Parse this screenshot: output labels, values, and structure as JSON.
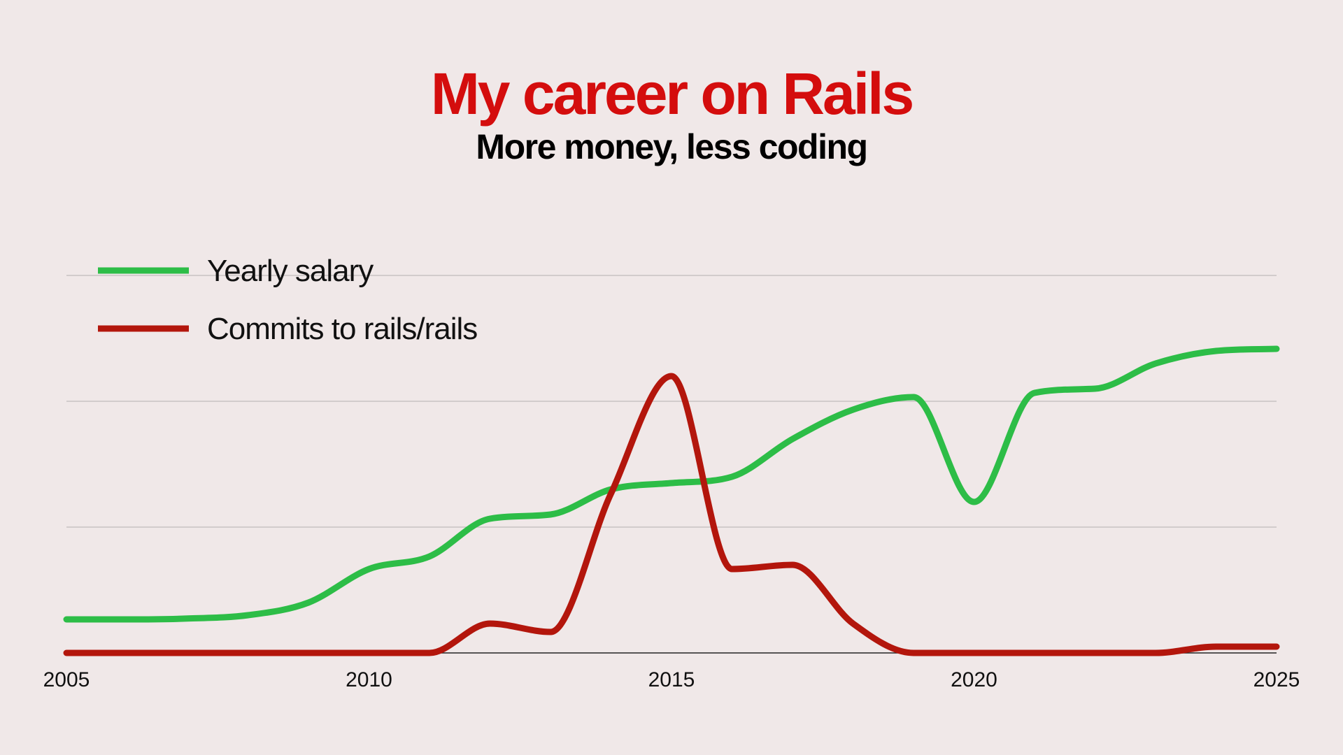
{
  "header": {
    "title": "My career on Rails",
    "subtitle": "More money, less coding"
  },
  "colors": {
    "background": "#f0e8e8",
    "title": "#d40d0d",
    "salary_line": "#2dbd47",
    "commits_line": "#b3160c",
    "gridline": "#c8c2c2",
    "axis": "#222222"
  },
  "chart_data": {
    "type": "line",
    "title": "My career on Rails",
    "subtitle": "More money, less coding",
    "xlabel": "",
    "ylabel": "",
    "xlim": [
      2005,
      2025
    ],
    "ylim": [
      0,
      100
    ],
    "x_ticks": [
      "2005",
      "2010",
      "2015",
      "2020",
      "2025"
    ],
    "y_ticks": [
      0,
      30,
      60,
      90
    ],
    "y_tick_labels_shown": false,
    "grid": "horizontal",
    "legend": "top-left",
    "x": [
      2005,
      2006,
      2007,
      2008,
      2009,
      2010,
      2011,
      2012,
      2013,
      2014,
      2015,
      2016,
      2017,
      2018,
      2019,
      2020,
      2021,
      2022,
      2023,
      2024,
      2025
    ],
    "series": [
      {
        "name": "Yearly salary",
        "color": "#2dbd47",
        "values": [
          8,
          8,
          8.2,
          9,
          12,
          20,
          23,
          32,
          33,
          39,
          40.5,
          42,
          51,
          58,
          61,
          36,
          62,
          63,
          69,
          72,
          72.5
        ]
      },
      {
        "name": "Commits to rails/rails",
        "color": "#b3160c",
        "values": [
          0,
          0,
          0,
          0,
          0,
          0,
          0,
          7,
          5,
          38,
          66,
          20,
          21,
          7,
          0,
          0,
          0,
          0,
          0,
          1.5,
          1.5
        ]
      }
    ]
  }
}
